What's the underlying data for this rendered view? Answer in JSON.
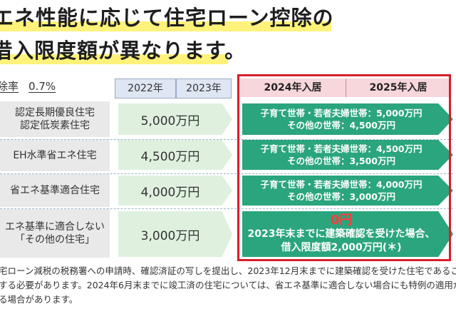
{
  "title": {
    "line1": "エネ性能に応じて住宅ローン控除の",
    "line2": "借入限度額が異なります。"
  },
  "rate": {
    "label": "除率",
    "value": "0.7%"
  },
  "headers": {
    "y2022": "2022年",
    "y2023": "2023年",
    "y2024": "2024年入居",
    "y2025": "2025年入居"
  },
  "rows": [
    {
      "label_line1": "認定長期優良住宅",
      "label_line2": "認定低炭素住宅",
      "amount_2022_2023": "5,000万円",
      "new_line1": "子育て世帯・若者夫婦世帯：5,000万円",
      "new_line2": "その他の世帯：4,500万円"
    },
    {
      "label_line1": "EH水準省エネ住宅",
      "amount_2022_2023": "4,500万円",
      "new_line1": "子育て世帯・若者夫婦世帯：4,500万円",
      "new_line2": "その他の世帯：3,500万円"
    },
    {
      "label_line1": "省エネ基準適合住宅",
      "amount_2022_2023": "4,000万円",
      "new_line1": "子育て世帯・若者夫婦世帯：4,000万円",
      "new_line2": "その他の世帯：3,000万円"
    },
    {
      "label_line1": "エネ基準に適合しない",
      "label_line2": "「その他の住宅」",
      "amount_2022_2023": "3,000万円",
      "new_zero": "0円",
      "new_line1": "2023年末までに建築確認を受けた場合、",
      "new_line2": "借入限度額2,000万円(＊)"
    }
  ],
  "footnote": {
    "line1": "宅ローン減税の税務署への申請時、確認済証の写しを提出し、2023年12月末までに建築確認を受けた住宅であることを",
    "line2": "する必要があります。2024年6月末までに竣工済の住宅については、省エネ基準に適合しない場合にも特例の適用が",
    "line3": "る場合があります。"
  },
  "colors": {
    "highlight": "#fff27a",
    "header_blue": "#dfe6f3",
    "header_pink": "#f7d6dc",
    "light_green": "#dff0df",
    "dark_green": "#2aa57d",
    "red_frame": "#d81e2a"
  }
}
